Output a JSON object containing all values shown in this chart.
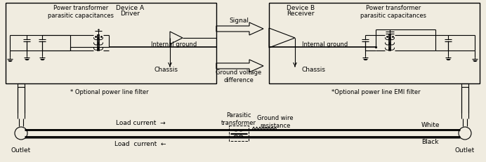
{
  "bg_color": "#f0ece0",
  "lc": "#000000",
  "tc": "#000000",
  "fig_width": 6.92,
  "fig_height": 2.32,
  "labels": {
    "power_trans_a": "Power transformer\nparasitic capacitances",
    "device_a_line1": "Device A",
    "device_a_line2": "Driver",
    "internal_ground_a": "Internal ground",
    "chassis_a": "Chassis",
    "optional_a": "* Optional power line filter",
    "signal": "Signal",
    "ground_voltage": "Ground voltage\ndifference",
    "power_trans_b": "Power transformer\nparasitic capacitances",
    "device_b_line1": "Device B",
    "device_b_line2": "Receiver",
    "internal_ground_b": "Internal ground",
    "chassis_b": "Chassis",
    "optional_b": "*Optional power line EMI filter",
    "parasitic_trans": "Parasitic\ntransformer",
    "ground_wire": "Ground wire\nresistance",
    "load_current_top": "Load current  →",
    "load_current_bot": "Load  current  ←",
    "outlet_left": "Outlet",
    "outlet_right": "Outlet",
    "white": "White",
    "black": "Black"
  }
}
